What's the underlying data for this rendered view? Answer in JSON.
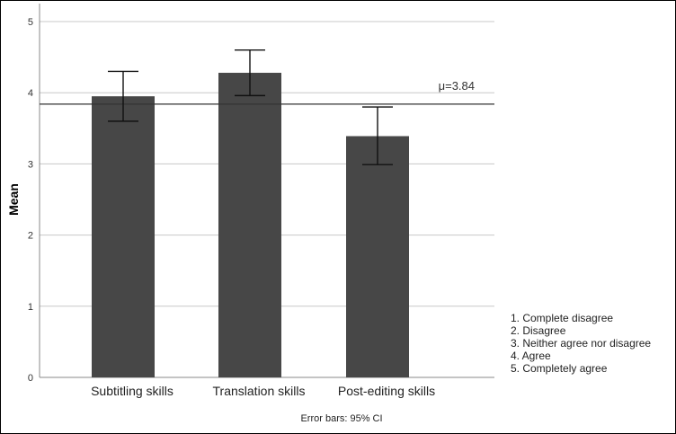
{
  "chart_data": {
    "type": "bar",
    "categories": [
      "Subtitling skills",
      "Translation skills",
      "Post-editing skills"
    ],
    "values": [
      3.95,
      4.28,
      3.39
    ],
    "error_bars": {
      "lower": [
        3.6,
        3.96,
        2.99
      ],
      "upper": [
        4.3,
        4.6,
        3.8
      ]
    },
    "title": "",
    "xlabel": "",
    "ylabel": "Mean",
    "ylim": [
      0,
      5
    ],
    "yticks": [
      "0",
      "1",
      "2",
      "3",
      "4",
      "5"
    ],
    "grid": true,
    "reference_line": {
      "value": 3.84,
      "label": "μ=3.84"
    },
    "footnote": "Error bars: 95% CI",
    "legend_text": [
      "1. Complete disagree",
      "2. Disagree",
      "3. Neither agree nor disagree",
      "4. Agree",
      "5. Completely agree"
    ],
    "legend_placement": "bottom-right",
    "colors": {
      "bar": "#474747",
      "grid": "#c8c8c8",
      "line": "#333333"
    }
  }
}
